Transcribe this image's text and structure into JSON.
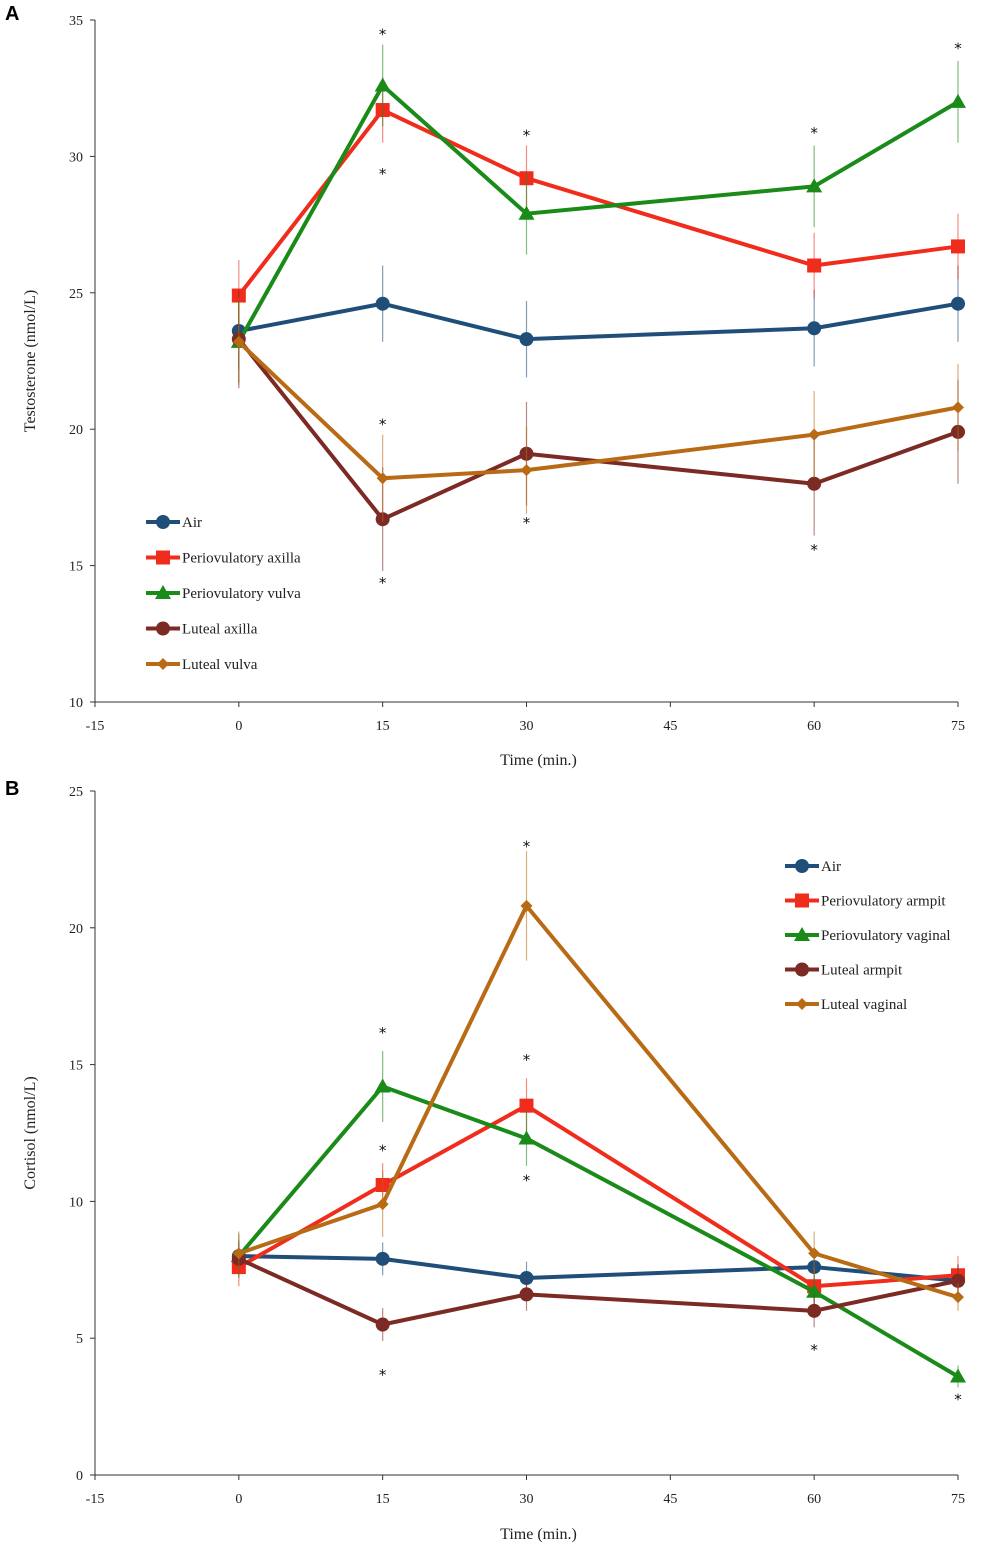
{
  "chart_data": [
    {
      "type": "line",
      "panel_label": "A",
      "ylabel": "Testosterone (nmol/L)",
      "xlabel": "Time (min.)",
      "xlim": [
        -15,
        75
      ],
      "ylim": [
        10,
        35
      ],
      "x_ticks": [
        -15,
        0,
        15,
        30,
        45,
        60,
        75
      ],
      "y_ticks": [
        10,
        15,
        20,
        25,
        30,
        35
      ],
      "legend_position": "bottom-left",
      "series": [
        {
          "name": "Air",
          "color": "#1f4e79",
          "marker": "circle",
          "x": [
            0,
            15,
            30,
            60,
            75
          ],
          "values": [
            23.6,
            24.6,
            23.3,
            23.7,
            24.6
          ],
          "error": [
            1.4,
            1.4,
            1.4,
            1.4,
            1.4
          ]
        },
        {
          "name": "Periovulatory axilla",
          "color": "#f02d1c",
          "marker": "square",
          "x": [
            0,
            15,
            30,
            60,
            75
          ],
          "values": [
            24.9,
            31.7,
            29.2,
            26.0,
            26.7
          ],
          "error": [
            1.3,
            1.2,
            1.2,
            1.2,
            1.2
          ]
        },
        {
          "name": "Periovulatory vulva",
          "color": "#1a8a18",
          "marker": "triangle",
          "x": [
            0,
            15,
            30,
            60,
            75
          ],
          "values": [
            23.2,
            32.6,
            27.9,
            28.9,
            32.0
          ],
          "error": [
            1.5,
            1.5,
            1.5,
            1.5,
            1.5
          ]
        },
        {
          "name": "Luteal axilla",
          "color": "#7b2a24",
          "marker": "circle",
          "x": [
            0,
            15,
            30,
            60,
            75
          ],
          "values": [
            23.3,
            16.7,
            19.1,
            18.0,
            19.9
          ],
          "error": [
            1.8,
            1.9,
            1.9,
            1.9,
            1.9
          ]
        },
        {
          "name": "Luteal vulva",
          "color": "#b96a14",
          "marker": "diamond",
          "x": [
            0,
            15,
            30,
            60,
            75
          ],
          "values": [
            23.2,
            18.2,
            18.5,
            19.8,
            20.8
          ],
          "error": [
            1.6,
            1.6,
            1.6,
            1.6,
            1.6
          ]
        }
      ],
      "annotations": [
        {
          "text": "*",
          "x": 15,
          "y": 34.5
        },
        {
          "text": "*",
          "x": 15,
          "y": 29.4
        },
        {
          "text": "*",
          "x": 30,
          "y": 30.8
        },
        {
          "text": "*",
          "x": 60,
          "y": 30.9
        },
        {
          "text": "*",
          "x": 75,
          "y": 34.0
        },
        {
          "text": "*",
          "x": 15,
          "y": 20.2
        },
        {
          "text": "*",
          "x": 15,
          "y": 14.4
        },
        {
          "text": "*",
          "x": 30,
          "y": 16.6
        },
        {
          "text": "*",
          "x": 60,
          "y": 15.6
        }
      ]
    },
    {
      "type": "line",
      "panel_label": "B",
      "ylabel": "Cortisol (nmol/L)",
      "xlabel": "Time (min.)",
      "xlim": [
        -15,
        75
      ],
      "ylim": [
        0,
        25
      ],
      "x_ticks": [
        -15,
        0,
        15,
        30,
        45,
        60,
        75
      ],
      "y_ticks": [
        0,
        5,
        10,
        15,
        20,
        25
      ],
      "legend_position": "top-right",
      "series": [
        {
          "name": "Air",
          "color": "#1f4e79",
          "marker": "circle",
          "x": [
            0,
            15,
            30,
            60,
            75
          ],
          "values": [
            8.0,
            7.9,
            7.2,
            7.6,
            7.1
          ],
          "error": [
            0.6,
            0.6,
            0.6,
            0.6,
            0.6
          ]
        },
        {
          "name": "Periovulatory armpit",
          "color": "#f02d1c",
          "marker": "square",
          "x": [
            0,
            15,
            30,
            60,
            75
          ],
          "values": [
            7.6,
            10.6,
            13.5,
            6.9,
            7.3
          ],
          "error": [
            0.7,
            0.8,
            1.0,
            0.7,
            0.7
          ]
        },
        {
          "name": "Periovulatory vaginal",
          "color": "#1a8a18",
          "marker": "triangle",
          "x": [
            0,
            15,
            30,
            60,
            75
          ],
          "values": [
            8.0,
            14.2,
            12.3,
            6.7,
            3.6
          ],
          "error": [
            0.8,
            1.3,
            1.0,
            0.6,
            0.4
          ]
        },
        {
          "name": "Luteal armpit",
          "color": "#7b2a24",
          "marker": "circle",
          "x": [
            0,
            15,
            30,
            60,
            75
          ],
          "values": [
            7.9,
            5.5,
            6.6,
            6.0,
            7.1
          ],
          "error": [
            0.6,
            0.6,
            0.6,
            0.6,
            0.6
          ]
        },
        {
          "name": "Luteal vaginal",
          "color": "#b96a14",
          "marker": "diamond",
          "x": [
            0,
            15,
            30,
            60,
            75
          ],
          "values": [
            8.1,
            9.9,
            20.8,
            8.1,
            6.5
          ],
          "error": [
            0.8,
            1.2,
            2.0,
            0.8,
            0.5
          ]
        }
      ],
      "annotations": [
        {
          "text": "*",
          "x": 15,
          "y": 16.2
        },
        {
          "text": "*",
          "x": 15,
          "y": 11.9
        },
        {
          "text": "*",
          "x": 15,
          "y": 3.7
        },
        {
          "text": "*",
          "x": 30,
          "y": 23.0
        },
        {
          "text": "*",
          "x": 30,
          "y": 15.2
        },
        {
          "text": "*",
          "x": 30,
          "y": 10.8
        },
        {
          "text": "*",
          "x": 60,
          "y": 4.6
        },
        {
          "text": "*",
          "x": 75,
          "y": 2.8
        }
      ]
    }
  ]
}
